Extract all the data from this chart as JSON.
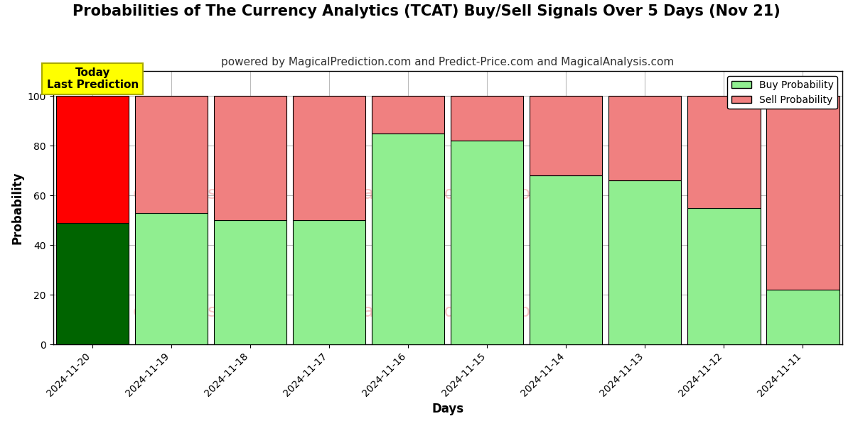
{
  "title": "Probabilities of The Currency Analytics (TCAT) Buy/Sell Signals Over 5 Days (Nov 21)",
  "subtitle": "powered by MagicalPrediction.com and Predict-Price.com and MagicalAnalysis.com",
  "xlabel": "Days",
  "ylabel": "Probability",
  "categories": [
    "2024-11-20",
    "2024-11-19",
    "2024-11-18",
    "2024-11-17",
    "2024-11-16",
    "2024-11-15",
    "2024-11-14",
    "2024-11-13",
    "2024-11-12",
    "2024-11-11"
  ],
  "buy_values": [
    49,
    53,
    50,
    50,
    85,
    82,
    68,
    66,
    55,
    22
  ],
  "sell_values": [
    51,
    47,
    50,
    50,
    15,
    18,
    32,
    34,
    45,
    78
  ],
  "today_index": 0,
  "buy_color_today": "#006400",
  "sell_color_today": "#FF0000",
  "buy_color_normal": "#90EE90",
  "sell_color_normal": "#F08080",
  "bar_edgecolor": "#000000",
  "ylim": [
    0,
    110
  ],
  "yticks": [
    0,
    20,
    40,
    60,
    80,
    100
  ],
  "dashed_line_y": 110,
  "watermark_color": "#F08080",
  "watermark_alpha": 0.45,
  "background_color": "#ffffff",
  "grid_color": "#bbbbbb",
  "today_box_color": "#FFFF00",
  "today_box_text": "Today\nLast Prediction",
  "legend_buy_label": "Buy Probability",
  "legend_sell_label": "Sell Probability",
  "title_fontsize": 15,
  "subtitle_fontsize": 11,
  "axis_label_fontsize": 12,
  "tick_fontsize": 10,
  "bar_width": 0.92
}
